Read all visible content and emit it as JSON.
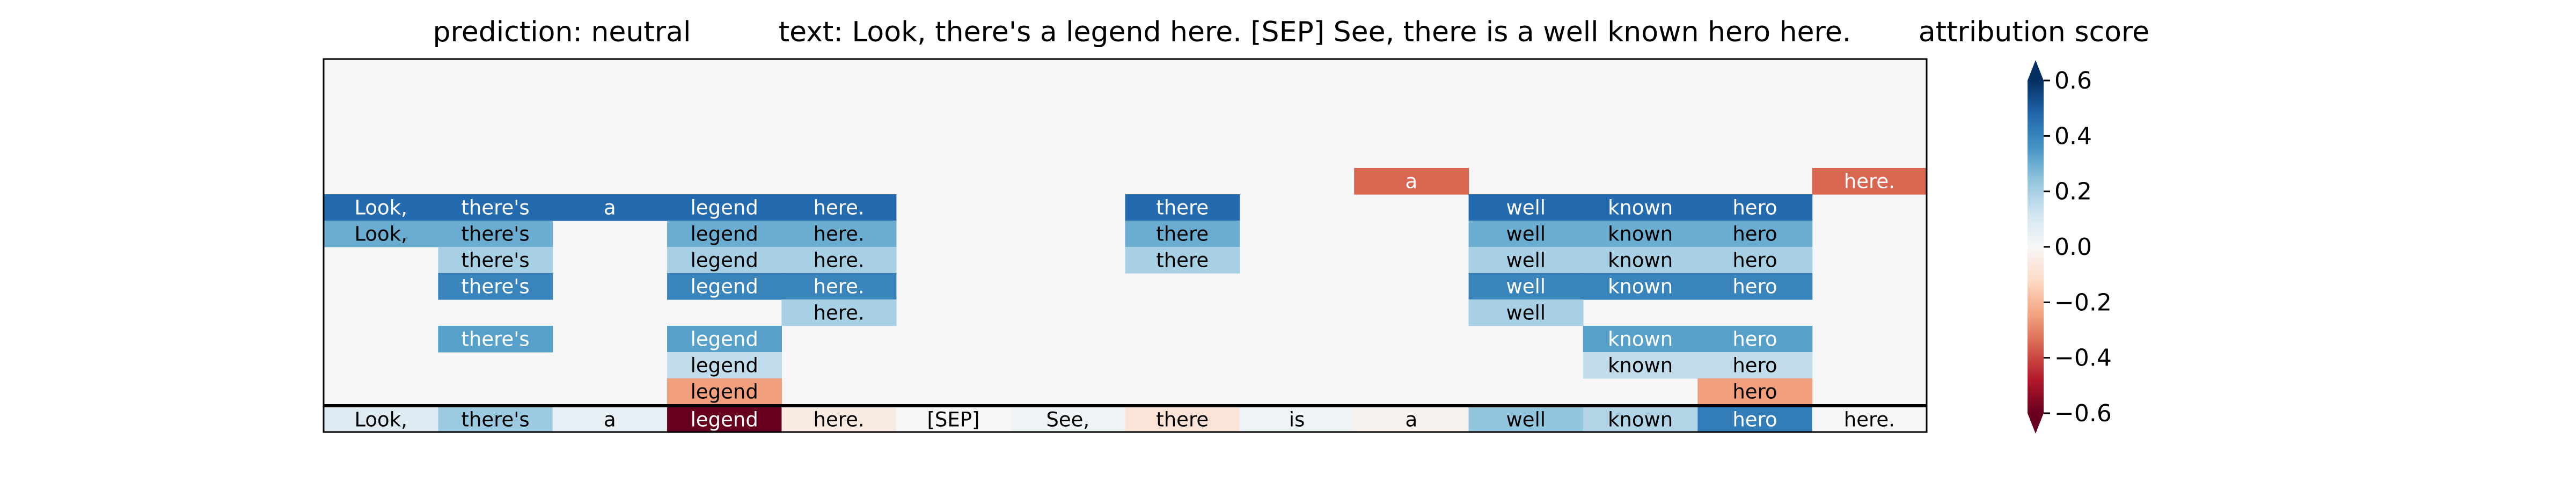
{
  "header": {
    "prediction": "prediction:  neutral",
    "text": "text:  Look, there's a legend here. [SEP] See, there is a well known hero here.",
    "colorbar_title": "attribution score"
  },
  "chart_data": {
    "type": "heatmap",
    "title": "",
    "xlabel": "",
    "ylabel": "",
    "tokens": [
      "Look,",
      "there's",
      "a",
      "legend",
      "here.",
      "[SEP]",
      "See,",
      "there",
      "is",
      "a",
      "well",
      "known",
      "hero",
      "here."
    ],
    "token_attribution": [
      0.08,
      0.22,
      0.05,
      -0.62,
      -0.05,
      0.0,
      0.03,
      -0.08,
      0.03,
      -0.02,
      0.24,
      0.18,
      0.42,
      0.0
    ],
    "layers": [
      {
        "cells": [
          [
            9,
            -0.35
          ],
          [
            13,
            -0.35
          ]
        ]
      },
      {
        "cells": [
          [
            0,
            0.47
          ],
          [
            1,
            0.47
          ],
          [
            2,
            0.47
          ],
          [
            3,
            0.47
          ],
          [
            4,
            0.47
          ],
          [
            7,
            0.47
          ],
          [
            10,
            0.47
          ],
          [
            11,
            0.47
          ],
          [
            12,
            0.47
          ]
        ]
      },
      {
        "cells": [
          [
            0,
            0.3
          ],
          [
            1,
            0.3
          ],
          [
            3,
            0.3
          ],
          [
            4,
            0.3
          ],
          [
            7,
            0.3
          ],
          [
            10,
            0.3
          ],
          [
            11,
            0.3
          ],
          [
            12,
            0.3
          ]
        ]
      },
      {
        "cells": [
          [
            1,
            0.2
          ],
          [
            3,
            0.2
          ],
          [
            4,
            0.2
          ],
          [
            7,
            0.2
          ],
          [
            10,
            0.2
          ],
          [
            11,
            0.2
          ],
          [
            12,
            0.2
          ]
        ]
      },
      {
        "cells": [
          [
            1,
            0.4
          ],
          [
            3,
            0.4
          ],
          [
            4,
            0.4
          ],
          [
            10,
            0.4
          ],
          [
            11,
            0.4
          ],
          [
            12,
            0.4
          ]
        ]
      },
      {
        "cells": [
          [
            4,
            0.2
          ],
          [
            10,
            0.2
          ]
        ]
      },
      {
        "cells": [
          [
            1,
            0.33
          ],
          [
            3,
            0.33
          ],
          [
            11,
            0.33
          ],
          [
            12,
            0.33
          ]
        ]
      },
      {
        "cells": [
          [
            3,
            0.15
          ],
          [
            11,
            0.15
          ],
          [
            12,
            0.15
          ]
        ]
      },
      {
        "cells": [
          [
            3,
            -0.25
          ],
          [
            12,
            -0.25
          ]
        ]
      }
    ],
    "colorbar": {
      "min": -0.6,
      "max": 0.6,
      "ticks": [
        0.6,
        0.4,
        0.2,
        0.0,
        -0.2,
        -0.4,
        -0.6
      ],
      "tick_labels": [
        "0.6",
        "0.4",
        "0.2",
        "0.0",
        "−0.2",
        "−0.4",
        "−0.6"
      ],
      "cmap": "RdBu",
      "extend": "both"
    },
    "background_color": "#f5f6f5",
    "grid": false
  }
}
